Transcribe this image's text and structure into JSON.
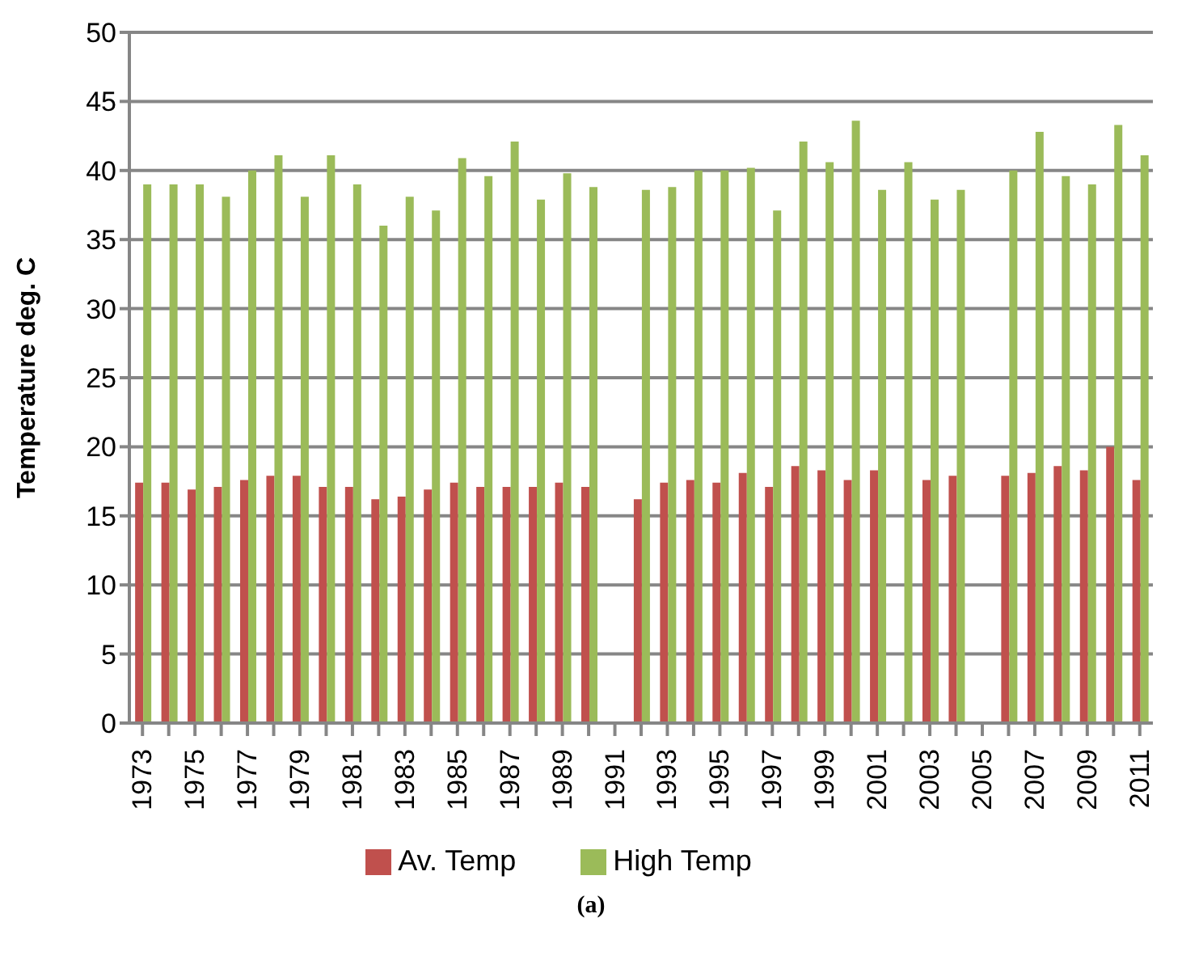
{
  "chart_data": {
    "type": "bar",
    "ylabel": "Temperature deg. C",
    "categories": [
      "1973",
      null,
      "1975",
      null,
      "1977",
      null,
      "1979",
      null,
      "1981",
      null,
      "1983",
      null,
      "1985",
      null,
      "1987",
      null,
      "1989",
      null,
      "1991",
      null,
      "1993",
      null,
      "1995",
      null,
      "1997",
      null,
      "1999",
      null,
      "2001",
      null,
      "2003",
      null,
      "2005",
      null,
      "2007",
      null,
      "2009",
      null,
      "2011"
    ],
    "series": [
      {
        "name": "Av. Temp",
        "color": "#c0504d",
        "values": [
          17.4,
          17.4,
          16.9,
          17.1,
          17.6,
          17.9,
          17.9,
          17.1,
          17.1,
          16.2,
          16.4,
          16.9,
          17.4,
          17.1,
          17.1,
          17.1,
          17.4,
          17.1,
          null,
          16.2,
          17.4,
          17.6,
          17.4,
          18.1,
          17.1,
          18.6,
          18.3,
          17.6,
          18.3,
          null,
          17.6,
          17.9,
          null,
          17.9,
          18.1,
          18.6,
          18.3,
          20,
          17.6
        ]
      },
      {
        "name": "High Temp",
        "color": "#9bbb59",
        "values": [
          39,
          39,
          39,
          38.1,
          40,
          41.1,
          38.1,
          41.1,
          39,
          36,
          38.1,
          37.1,
          40.9,
          39.6,
          42.1,
          37.9,
          39.8,
          38.8,
          null,
          38.6,
          38.8,
          40,
          40,
          40.2,
          37.1,
          42.1,
          40.6,
          43.6,
          38.6,
          40.6,
          37.9,
          38.6,
          null,
          40,
          42.8,
          39.6,
          39,
          43.3,
          41.1
        ]
      }
    ],
    "ylim": [
      0,
      50
    ],
    "yticks": [
      0,
      5,
      10,
      15,
      20,
      25,
      30,
      35,
      40,
      45,
      50
    ],
    "grid": "y",
    "legend": "bottom",
    "annotations": [
      "(a)"
    ]
  }
}
